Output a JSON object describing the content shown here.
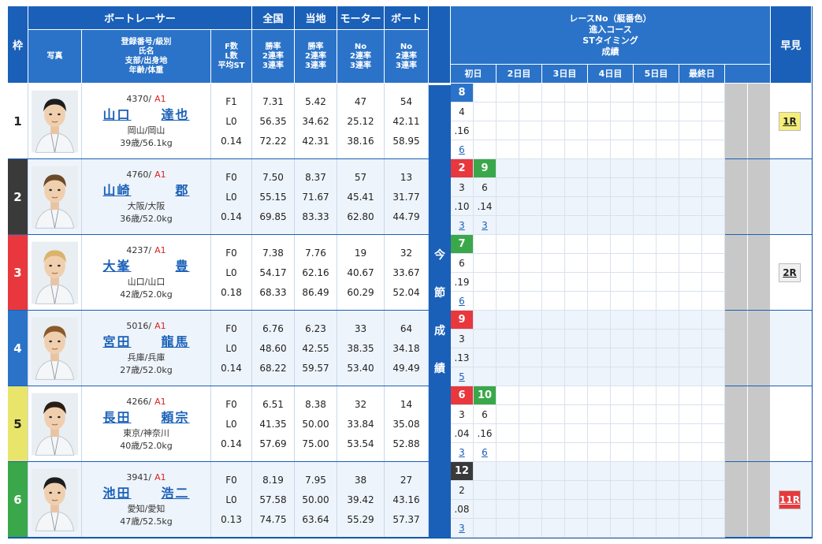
{
  "headers": {
    "waku": "枠",
    "photo": "写真",
    "boatracer": "ボートレーサー",
    "racer_sub": [
      "登録番号/級別",
      "氏名",
      "支部/出身地",
      "年齢/体重"
    ],
    "fl": [
      "F数",
      "L数",
      "平均ST"
    ],
    "zenkoku": "全国",
    "touchi": "当地",
    "motor": "モーター",
    "boat": "ボート",
    "rate_sub": [
      "勝率",
      "2連率",
      "3連率"
    ],
    "no_sub": [
      "No",
      "2連率",
      "3連率"
    ],
    "race_info": [
      "レースNo（艇番色）",
      "進入コース",
      "STタイミング",
      "成績"
    ],
    "days": [
      "初日",
      "2日目",
      "3日目",
      "4日目",
      "5日目",
      "最終日"
    ],
    "hayami": "早見",
    "konsetsu": [
      "今",
      "節",
      "成",
      "績"
    ]
  },
  "colors": {
    "header": "#1a60b8",
    "waku": [
      "#ffffff",
      "#3a3a3a",
      "#e8383d",
      "#2b73c8",
      "#e8e56a",
      "#3aa84a"
    ],
    "waku_text": [
      "#222222",
      "#ffffff",
      "#ffffff",
      "#ffffff",
      "#222222",
      "#ffffff"
    ],
    "row_bg": [
      "#ffffff",
      "#eef4fb",
      "#ffffff",
      "#eef4fb",
      "#ffffff",
      "#eef4fb"
    ]
  },
  "racers": [
    {
      "waku": "1",
      "regno": "4370",
      "cls": "A1",
      "last": "山口",
      "first": "達也",
      "branch": "岡山/岡山",
      "age_weight": "39歳/56.1kg",
      "f": "F1",
      "l": "L0",
      "st": "0.14",
      "zenkoku": [
        "7.31",
        "56.35",
        "72.22"
      ],
      "touchi": [
        "5.42",
        "34.62",
        "42.31"
      ],
      "motor": [
        "47",
        "25.12",
        "38.16"
      ],
      "boat": [
        "54",
        "42.11",
        "58.95"
      ],
      "races": [
        {
          "boat": "8",
          "boat_color": "#2b73c8",
          "course": "4",
          "st": ".16",
          "rank": "6"
        }
      ],
      "hayami": "1R",
      "hayami_bg": "#f5ef7a",
      "hayami_color": "#222222"
    },
    {
      "waku": "2",
      "regno": "4760",
      "cls": "A1",
      "last": "山崎",
      "first": "郡",
      "branch": "大阪/大阪",
      "age_weight": "36歳/52.0kg",
      "f": "F0",
      "l": "L0",
      "st": "0.14",
      "zenkoku": [
        "7.50",
        "55.15",
        "69.85"
      ],
      "touchi": [
        "8.37",
        "71.67",
        "83.33"
      ],
      "motor": [
        "57",
        "45.41",
        "62.80"
      ],
      "boat": [
        "13",
        "31.77",
        "44.79"
      ],
      "races": [
        {
          "boat": "2",
          "boat_color": "#e8383d",
          "course": "3",
          "st": ".10",
          "rank": "3"
        },
        {
          "boat": "9",
          "boat_color": "#3aa84a",
          "course": "6",
          "st": ".14",
          "rank": "3"
        }
      ],
      "hayami": "",
      "hayami_bg": "",
      "hayami_color": ""
    },
    {
      "waku": "3",
      "regno": "4237",
      "cls": "A1",
      "last": "大峯",
      "first": "豊",
      "branch": "山口/山口",
      "age_weight": "42歳/52.0kg",
      "f": "F0",
      "l": "L0",
      "st": "0.18",
      "zenkoku": [
        "7.38",
        "54.17",
        "68.33"
      ],
      "touchi": [
        "7.76",
        "62.16",
        "86.49"
      ],
      "motor": [
        "19",
        "40.67",
        "60.29"
      ],
      "boat": [
        "32",
        "33.67",
        "52.04"
      ],
      "races": [
        {
          "boat": "7",
          "boat_color": "#3aa84a",
          "course": "6",
          "st": ".19",
          "rank": "6"
        }
      ],
      "hayami": "2R",
      "hayami_bg": "#f0f0f0",
      "hayami_color": "#222222"
    },
    {
      "waku": "4",
      "regno": "5016",
      "cls": "A1",
      "last": "宮田",
      "first": "龍馬",
      "branch": "兵庫/兵庫",
      "age_weight": "27歳/52.0kg",
      "f": "F0",
      "l": "L0",
      "st": "0.14",
      "zenkoku": [
        "6.76",
        "48.60",
        "68.22"
      ],
      "touchi": [
        "6.23",
        "42.55",
        "59.57"
      ],
      "motor": [
        "33",
        "38.35",
        "53.40"
      ],
      "boat": [
        "64",
        "34.18",
        "49.49"
      ],
      "races": [
        {
          "boat": "9",
          "boat_color": "#e8383d",
          "course": "3",
          "st": ".13",
          "rank": "5"
        }
      ],
      "hayami": "",
      "hayami_bg": "",
      "hayami_color": ""
    },
    {
      "waku": "5",
      "regno": "4266",
      "cls": "A1",
      "last": "長田",
      "first": "頼宗",
      "branch": "東京/神奈川",
      "age_weight": "40歳/52.0kg",
      "f": "F0",
      "l": "L0",
      "st": "0.14",
      "zenkoku": [
        "6.51",
        "41.35",
        "57.69"
      ],
      "touchi": [
        "8.38",
        "50.00",
        "75.00"
      ],
      "motor": [
        "32",
        "33.84",
        "53.54"
      ],
      "boat": [
        "14",
        "35.08",
        "52.88"
      ],
      "races": [
        {
          "boat": "6",
          "boat_color": "#e8383d",
          "course": "3",
          "st": ".04",
          "rank": "3"
        },
        {
          "boat": "10",
          "boat_color": "#3aa84a",
          "course": "6",
          "st": ".16",
          "rank": "6"
        }
      ],
      "hayami": "",
      "hayami_bg": "",
      "hayami_color": ""
    },
    {
      "waku": "6",
      "regno": "3941",
      "cls": "A1",
      "last": "池田",
      "first": "浩二",
      "branch": "愛知/愛知",
      "age_weight": "47歳/52.5kg",
      "f": "F0",
      "l": "L0",
      "st": "0.13",
      "zenkoku": [
        "8.19",
        "57.58",
        "74.75"
      ],
      "touchi": [
        "7.95",
        "50.00",
        "63.64"
      ],
      "motor": [
        "38",
        "39.42",
        "55.29"
      ],
      "boat": [
        "27",
        "43.16",
        "57.37"
      ],
      "races": [
        {
          "boat": "12",
          "boat_color": "#3a3a3a",
          "course": "2",
          "st": ".08",
          "rank": "3"
        }
      ],
      "hayami": "11R",
      "hayami_bg": "#e8383d",
      "hayami_color": "#ffffff"
    }
  ]
}
